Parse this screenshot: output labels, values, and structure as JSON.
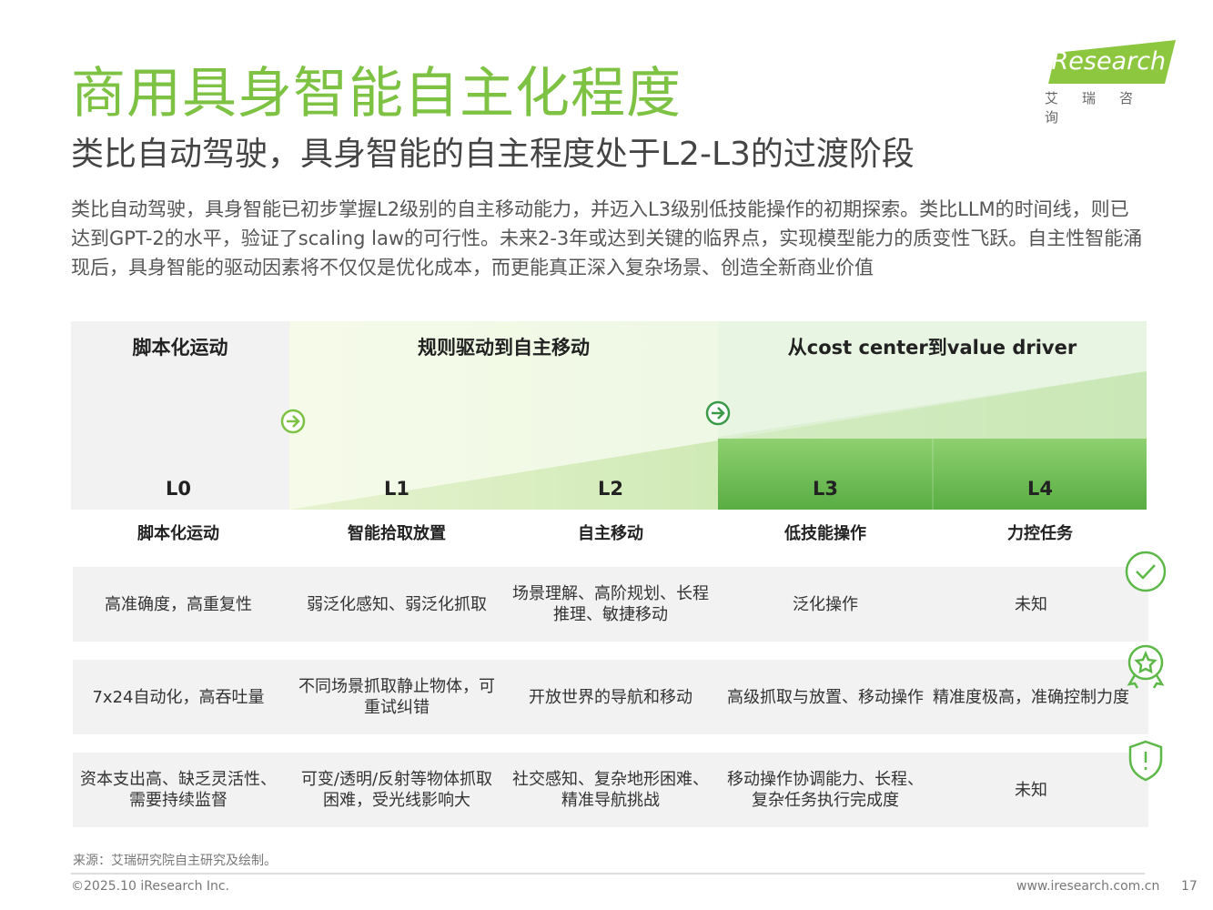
{
  "header": {
    "title": "商用具身智能自主化程度",
    "subtitle": "类比自动驾驶，具身智能的自主程度处于L2-L3的过渡阶段",
    "logo": "iResearch",
    "logo_sub": "艾瑞咨询"
  },
  "intro": "类比自动驾驶，具身智能已初步掌握L2级别的自主移动能力，并迈入L3级别低技能操作的初期探索。类比LLM的时间线，则已达到GPT-2的水平，验证了scaling law的可行性。未来2-3年或达到关键的临界点，实现模型能力的质变性飞跃。自主性智能涌现后，具身智能的驱动因素将不仅仅是优化成本，而更能真正深入复杂场景、创造全新商业价值",
  "phases": [
    "脚本化运动",
    "规则驱动到自主移动",
    "从cost center到value driver"
  ],
  "levels": [
    "L0",
    "L1",
    "L2",
    "L3",
    "L4"
  ],
  "capabilities": [
    "脚本化运动",
    "智能拾取放置",
    "自主移动",
    "低技能操作",
    "力控任务"
  ],
  "rows": [
    [
      "高准确度，高重复性",
      "弱泛化感知、弱泛化抓取",
      "场景理解、高阶规划、长程推理、敏捷移动",
      "泛化操作",
      "未知"
    ],
    [
      "7x24自动化，高吞吐量",
      "不同场景抓取静止物体，可重试纠错",
      "开放世界的导航和移动",
      "高级抓取与放置、移动操作",
      "精准度极高，准确控制力度"
    ],
    [
      "资本支出高、缺乏灵活性、需要持续监督",
      "可变/透明/反射等物体抓取困难，受光线影响大",
      "社交感知、复杂地形困难、精准导航挑战",
      "移动操作协调能力、长程、复杂任务执行完成度",
      "未知"
    ]
  ],
  "footer": {
    "source": "来源：艾瑞研究院自主研究及绘制。",
    "copyright": "©2025.10 iResearch Inc.",
    "url": "www.iresearch.com.cn",
    "page": "17"
  }
}
